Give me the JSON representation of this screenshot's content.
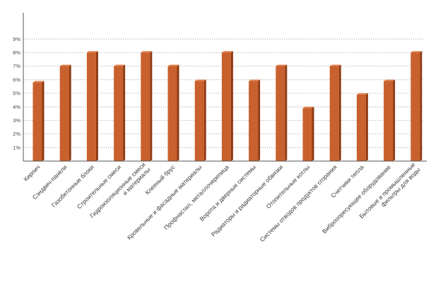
{
  "chart_data": {
    "type": "bar",
    "categories": [
      [
        "Кирпич"
      ],
      [
        "Сэндвич-панели"
      ],
      [
        "Газобетонные блоки"
      ],
      [
        "Строительные смеси"
      ],
      [
        "Гидроизоляционные смеси",
        "и материалы"
      ],
      [
        "Клееный брус"
      ],
      [
        "Кровельные и фасадные материалы"
      ],
      [
        "Профнастил, металлочерепица"
      ],
      [
        "Ворота и дверные системы"
      ],
      [
        "Радиаторы и радиаторные обвязки"
      ],
      [
        "Отопительные котлы"
      ],
      [
        "Системы отводов продуктов сгорания"
      ],
      [
        "Счетчики тепла"
      ],
      [
        "Виброопресующее оборудование"
      ],
      [
        "Бытовые и промышленные",
        "фильтры для воды"
      ]
    ],
    "values": [
      5.8,
      7.0,
      8.0,
      7.0,
      8.0,
      7.0,
      5.9,
      8.0,
      5.9,
      7.0,
      3.9,
      7.0,
      4.9,
      5.9,
      8.0
    ],
    "y_ticks": [
      "1%",
      "2%",
      "3%",
      "4%",
      "5%",
      "6%",
      "7%",
      "8%",
      "9%"
    ],
    "ylim": [
      0,
      9
    ],
    "grid": true,
    "title": "",
    "xlabel": "",
    "ylabel": "",
    "colors": {
      "bar_front": "#c8612e",
      "bar_side": "#8e3a12",
      "bar_top": "#e07a45",
      "axis": "#555555",
      "grid": "#9a9a9a"
    }
  }
}
